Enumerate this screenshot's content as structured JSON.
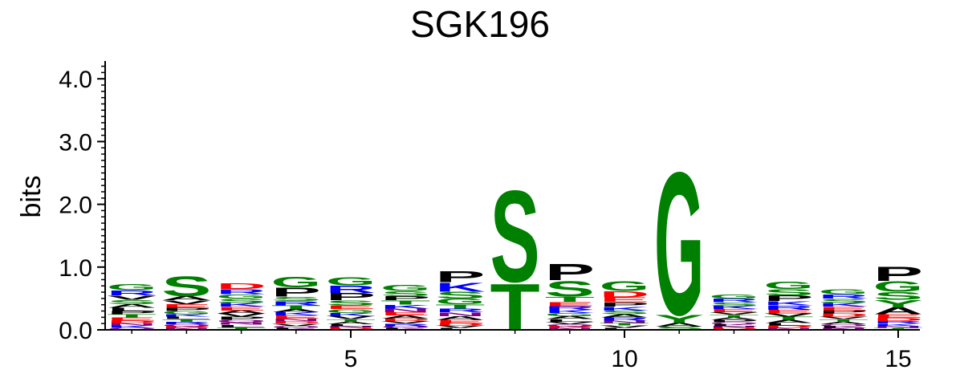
{
  "chart_data": {
    "type": "sequence-logo",
    "title": "SGK196",
    "ylabel": "bits",
    "ylim": [
      0,
      4.3
    ],
    "yticks": [
      "0.0",
      "1.0",
      "2.0",
      "3.0",
      "4.0"
    ],
    "xticks": [
      {
        "pos": 5,
        "label": "5"
      },
      {
        "pos": 10,
        "label": "10"
      },
      {
        "pos": 15,
        "label": "15"
      }
    ],
    "color_map": {
      "S": "#008000",
      "G": "#008000",
      "T": "#008000",
      "Y": "#008000",
      "C": "#008000",
      "N": "#800080",
      "Q": "#800080",
      "P": "#000000",
      "A": "#000000",
      "V": "#000000",
      "L": "#000000",
      "I": "#000000",
      "M": "#000000",
      "F": "#000000",
      "W": "#000000",
      "K": "#0000ff",
      "R": "#0000ff",
      "H": "#0000ff",
      "D": "#ff0000",
      "E": "#ff0000"
    },
    "positions": [
      {
        "pos": 1,
        "letters": [
          {
            "aa": "G",
            "bits": 0.1
          },
          {
            "aa": "R",
            "bits": 0.08
          },
          {
            "aa": "S",
            "bits": 0.07
          },
          {
            "aa": "V",
            "bits": 0.07
          },
          {
            "aa": "A",
            "bits": 0.06
          },
          {
            "aa": "E",
            "bits": 0.05
          },
          {
            "aa": "T",
            "bits": 0.05
          },
          {
            "aa": "P",
            "bits": 0.05
          },
          {
            "aa": "L",
            "bits": 0.05
          },
          {
            "aa": "K",
            "bits": 0.04
          },
          {
            "aa": "N",
            "bits": 0.04
          },
          {
            "aa": "D",
            "bits": 0.04
          },
          {
            "aa": "Q",
            "bits": 0.03
          }
        ]
      },
      {
        "pos": 2,
        "letters": [
          {
            "aa": "S",
            "bits": 0.33
          },
          {
            "aa": "A",
            "bits": 0.07
          },
          {
            "aa": "E",
            "bits": 0.06
          },
          {
            "aa": "V",
            "bits": 0.06
          },
          {
            "aa": "G",
            "bits": 0.05
          },
          {
            "aa": "P",
            "bits": 0.05
          },
          {
            "aa": "R",
            "bits": 0.04
          },
          {
            "aa": "T",
            "bits": 0.04
          },
          {
            "aa": "L",
            "bits": 0.04
          },
          {
            "aa": "K",
            "bits": 0.04
          },
          {
            "aa": "N",
            "bits": 0.03
          },
          {
            "aa": "D",
            "bits": 0.03
          },
          {
            "aa": "Q",
            "bits": 0.03
          }
        ]
      },
      {
        "pos": 3,
        "letters": [
          {
            "aa": "D",
            "bits": 0.09
          },
          {
            "aa": "R",
            "bits": 0.08
          },
          {
            "aa": "S",
            "bits": 0.07
          },
          {
            "aa": "G",
            "bits": 0.07
          },
          {
            "aa": "E",
            "bits": 0.06
          },
          {
            "aa": "K",
            "bits": 0.06
          },
          {
            "aa": "P",
            "bits": 0.05
          },
          {
            "aa": "V",
            "bits": 0.05
          },
          {
            "aa": "A",
            "bits": 0.05
          },
          {
            "aa": "T",
            "bits": 0.04
          },
          {
            "aa": "L",
            "bits": 0.04
          },
          {
            "aa": "N",
            "bits": 0.04
          },
          {
            "aa": "Q",
            "bits": 0.04
          }
        ]
      },
      {
        "pos": 4,
        "letters": [
          {
            "aa": "G",
            "bits": 0.17
          },
          {
            "aa": "P",
            "bits": 0.15
          },
          {
            "aa": "R",
            "bits": 0.07
          },
          {
            "aa": "S",
            "bits": 0.07
          },
          {
            "aa": "T",
            "bits": 0.06
          },
          {
            "aa": "E",
            "bits": 0.05
          },
          {
            "aa": "K",
            "bits": 0.05
          },
          {
            "aa": "A",
            "bits": 0.05
          },
          {
            "aa": "V",
            "bits": 0.04
          },
          {
            "aa": "D",
            "bits": 0.04
          },
          {
            "aa": "N",
            "bits": 0.04
          },
          {
            "aa": "L",
            "bits": 0.03
          },
          {
            "aa": "Q",
            "bits": 0.03
          }
        ]
      },
      {
        "pos": 5,
        "letters": [
          {
            "aa": "G",
            "bits": 0.14
          },
          {
            "aa": "P",
            "bits": 0.12
          },
          {
            "aa": "R",
            "bits": 0.12
          },
          {
            "aa": "S",
            "bits": 0.08
          },
          {
            "aa": "G",
            "bits": 0.06
          },
          {
            "aa": "E",
            "bits": 0.06
          },
          {
            "aa": "V",
            "bits": 0.05
          },
          {
            "aa": "K",
            "bits": 0.05
          },
          {
            "aa": "A",
            "bits": 0.04
          },
          {
            "aa": "T",
            "bits": 0.04
          },
          {
            "aa": "D",
            "bits": 0.03
          },
          {
            "aa": "N",
            "bits": 0.03
          },
          {
            "aa": "L",
            "bits": 0.03
          }
        ]
      },
      {
        "pos": 6,
        "letters": [
          {
            "aa": "G",
            "bits": 0.1
          },
          {
            "aa": "S",
            "bits": 0.08
          },
          {
            "aa": "T",
            "bits": 0.07
          },
          {
            "aa": "P",
            "bits": 0.07
          },
          {
            "aa": "N",
            "bits": 0.06
          },
          {
            "aa": "K",
            "bits": 0.06
          },
          {
            "aa": "A",
            "bits": 0.05
          },
          {
            "aa": "E",
            "bits": 0.05
          },
          {
            "aa": "R",
            "bits": 0.04
          },
          {
            "aa": "V",
            "bits": 0.04
          },
          {
            "aa": "D",
            "bits": 0.04
          },
          {
            "aa": "L",
            "bits": 0.03
          },
          {
            "aa": "Q",
            "bits": 0.03
          }
        ]
      },
      {
        "pos": 7,
        "letters": [
          {
            "aa": "P",
            "bits": 0.18
          },
          {
            "aa": "K",
            "bits": 0.15
          },
          {
            "aa": "S",
            "bits": 0.11
          },
          {
            "aa": "G",
            "bits": 0.09
          },
          {
            "aa": "T",
            "bits": 0.07
          },
          {
            "aa": "A",
            "bits": 0.06
          },
          {
            "aa": "N",
            "bits": 0.06
          },
          {
            "aa": "R",
            "bits": 0.06
          },
          {
            "aa": "E",
            "bits": 0.05
          },
          {
            "aa": "V",
            "bits": 0.04
          },
          {
            "aa": "D",
            "bits": 0.04
          },
          {
            "aa": "L",
            "bits": 0.03
          }
        ]
      },
      {
        "pos": 8,
        "letters": [
          {
            "aa": "S",
            "bits": 1.52
          },
          {
            "aa": "T",
            "bits": 0.77
          }
        ]
      },
      {
        "pos": 9,
        "letters": [
          {
            "aa": "P",
            "bits": 0.27
          },
          {
            "aa": "S",
            "bits": 0.26
          },
          {
            "aa": "T",
            "bits": 0.08
          },
          {
            "aa": "E",
            "bits": 0.07
          },
          {
            "aa": "R",
            "bits": 0.06
          },
          {
            "aa": "A",
            "bits": 0.05
          },
          {
            "aa": "G",
            "bits": 0.05
          },
          {
            "aa": "K",
            "bits": 0.05
          },
          {
            "aa": "V",
            "bits": 0.04
          },
          {
            "aa": "L",
            "bits": 0.04
          },
          {
            "aa": "N",
            "bits": 0.03
          },
          {
            "aa": "D",
            "bits": 0.03
          },
          {
            "aa": "Q",
            "bits": 0.03
          }
        ]
      },
      {
        "pos": 10,
        "letters": [
          {
            "aa": "G",
            "bits": 0.16
          },
          {
            "aa": "D",
            "bits": 0.1
          },
          {
            "aa": "E",
            "bits": 0.08
          },
          {
            "aa": "P",
            "bits": 0.07
          },
          {
            "aa": "S",
            "bits": 0.06
          },
          {
            "aa": "K",
            "bits": 0.06
          },
          {
            "aa": "R",
            "bits": 0.05
          },
          {
            "aa": "A",
            "bits": 0.05
          },
          {
            "aa": "V",
            "bits": 0.04
          },
          {
            "aa": "T",
            "bits": 0.04
          },
          {
            "aa": "N",
            "bits": 0.04
          },
          {
            "aa": "L",
            "bits": 0.03
          }
        ]
      },
      {
        "pos": 11,
        "letters": [
          {
            "aa": "G",
            "bits": 2.37
          },
          {
            "aa": "A",
            "bits": 0.06
          },
          {
            "aa": "S",
            "bits": 0.05
          },
          {
            "aa": "Y",
            "bits": 0.14
          }
        ]
      },
      {
        "pos": 12,
        "letters": [
          {
            "aa": "G",
            "bits": 0.07
          },
          {
            "aa": "S",
            "bits": 0.06
          },
          {
            "aa": "R",
            "bits": 0.06
          },
          {
            "aa": "E",
            "bits": 0.05
          },
          {
            "aa": "K",
            "bits": 0.05
          },
          {
            "aa": "P",
            "bits": 0.04
          },
          {
            "aa": "A",
            "bits": 0.04
          },
          {
            "aa": "T",
            "bits": 0.04
          },
          {
            "aa": "V",
            "bits": 0.04
          },
          {
            "aa": "D",
            "bits": 0.03
          },
          {
            "aa": "N",
            "bits": 0.03
          },
          {
            "aa": "L",
            "bits": 0.03
          },
          {
            "aa": "Q",
            "bits": 0.03
          }
        ]
      },
      {
        "pos": 13,
        "letters": [
          {
            "aa": "G",
            "bits": 0.12
          },
          {
            "aa": "S",
            "bits": 0.1
          },
          {
            "aa": "P",
            "bits": 0.09
          },
          {
            "aa": "R",
            "bits": 0.07
          },
          {
            "aa": "K",
            "bits": 0.07
          },
          {
            "aa": "E",
            "bits": 0.06
          },
          {
            "aa": "A",
            "bits": 0.05
          },
          {
            "aa": "T",
            "bits": 0.05
          },
          {
            "aa": "V",
            "bits": 0.05
          },
          {
            "aa": "D",
            "bits": 0.04
          },
          {
            "aa": "L",
            "bits": 0.04
          },
          {
            "aa": "N",
            "bits": 0.03
          }
        ]
      },
      {
        "pos": 14,
        "letters": [
          {
            "aa": "G",
            "bits": 0.08
          },
          {
            "aa": "S",
            "bits": 0.07
          },
          {
            "aa": "R",
            "bits": 0.07
          },
          {
            "aa": "E",
            "bits": 0.06
          },
          {
            "aa": "K",
            "bits": 0.06
          },
          {
            "aa": "D",
            "bits": 0.05
          },
          {
            "aa": "P",
            "bits": 0.05
          },
          {
            "aa": "A",
            "bits": 0.04
          },
          {
            "aa": "T",
            "bits": 0.04
          },
          {
            "aa": "V",
            "bits": 0.04
          },
          {
            "aa": "N",
            "bits": 0.03
          },
          {
            "aa": "L",
            "bits": 0.03
          },
          {
            "aa": "Q",
            "bits": 0.03
          }
        ]
      },
      {
        "pos": 15,
        "letters": [
          {
            "aa": "P",
            "bits": 0.23
          },
          {
            "aa": "G",
            "bits": 0.17
          },
          {
            "aa": "S",
            "bits": 0.13
          },
          {
            "aa": "Y",
            "bits": 0.12
          },
          {
            "aa": "A",
            "bits": 0.11
          },
          {
            "aa": "E",
            "bits": 0.06
          },
          {
            "aa": "D",
            "bits": 0.05
          },
          {
            "aa": "K",
            "bits": 0.04
          },
          {
            "aa": "R",
            "bits": 0.04
          },
          {
            "aa": "T",
            "bits": 0.03
          },
          {
            "aa": "N",
            "bits": 0.03
          }
        ]
      }
    ]
  }
}
